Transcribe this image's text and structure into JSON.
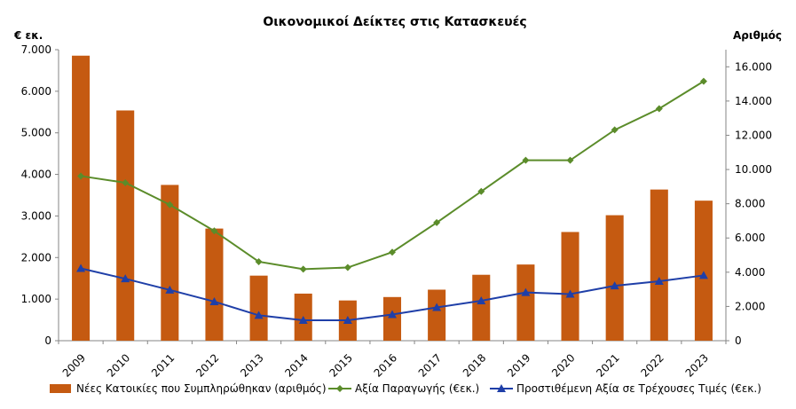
{
  "chart_data": {
    "type": "bar",
    "title": "Οικονομικοί  Δείκτες στις Κατασκευές",
    "ylabel_left": "€ εκ.",
    "ylabel_right": "Αριθμός",
    "categories": [
      "2009",
      "2010",
      "2011",
      "2012",
      "2013",
      "2014",
      "2015",
      "2016",
      "2017",
      "2018",
      "2019",
      "2020",
      "2021",
      "2022",
      "2023"
    ],
    "left_axis": {
      "min": 0,
      "max": 7000,
      "step": 1000,
      "ticks": [
        "0",
        "1.000",
        "2.000",
        "3.000",
        "4.000",
        "5.000",
        "6.000",
        "7.000"
      ]
    },
    "right_axis": {
      "min": 0,
      "max": 17000,
      "step": 2000,
      "ticks": [
        "0",
        "2.000",
        "4.000",
        "6.000",
        "8.000",
        "10.000",
        "12.000",
        "14.000",
        "16.000"
      ]
    },
    "series": [
      {
        "name": "Νέες Κατοικίες που Συμπληρώθηκαν (αριθμός)",
        "type": "bar",
        "axis": "right",
        "color": "#C55A11",
        "values": [
          16650,
          13450,
          9100,
          6550,
          3800,
          2750,
          2350,
          2550,
          2980,
          3850,
          4450,
          6350,
          7330,
          8830,
          8180
        ]
      },
      {
        "name": "Αξία Παραγωγής (€εκ.)",
        "type": "line",
        "axis": "left",
        "color": "#5B8C2A",
        "marker": "diamond",
        "values": [
          3960,
          3800,
          3270,
          2640,
          1900,
          1720,
          1760,
          2130,
          2840,
          3590,
          4340,
          4340,
          5070,
          5580,
          6240
        ]
      },
      {
        "name": "Προστιθέμενη Αξία σε Τρέχουσες Τιμές (€εκ.)",
        "type": "line",
        "axis": "left",
        "color": "#1F3FA8",
        "marker": "triangle",
        "values": [
          1740,
          1490,
          1220,
          940,
          610,
          490,
          490,
          630,
          800,
          960,
          1160,
          1120,
          1320,
          1430,
          1570
        ]
      }
    ],
    "grid": false,
    "legend_position": "bottom"
  }
}
